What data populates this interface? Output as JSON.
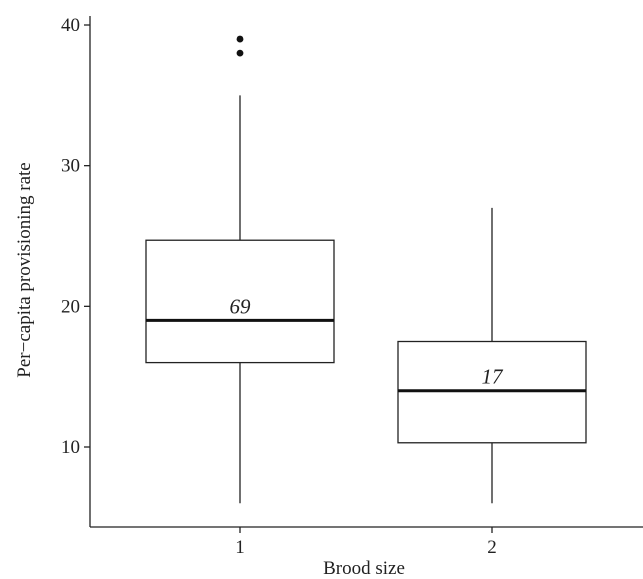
{
  "chart_data": {
    "type": "boxplot",
    "title": "",
    "xlabel": "Brood size",
    "ylabel": "Per−capita provisioning rate",
    "yticks": [
      10,
      20,
      30,
      40
    ],
    "ylim": [
      4.5,
      41
    ],
    "grid": false,
    "categories": [
      "1",
      "2"
    ],
    "boxes": [
      {
        "category": "1",
        "whisker_low": 6,
        "q1": 16,
        "median": 19,
        "q3": 24.7,
        "whisker_high": 35,
        "outliers": [
          38,
          39
        ],
        "count_label": "69"
      },
      {
        "category": "2",
        "whisker_low": 6,
        "q1": 10.3,
        "median": 14,
        "q3": 17.5,
        "whisker_high": 27,
        "outliers": [],
        "count_label": "17"
      }
    ]
  }
}
